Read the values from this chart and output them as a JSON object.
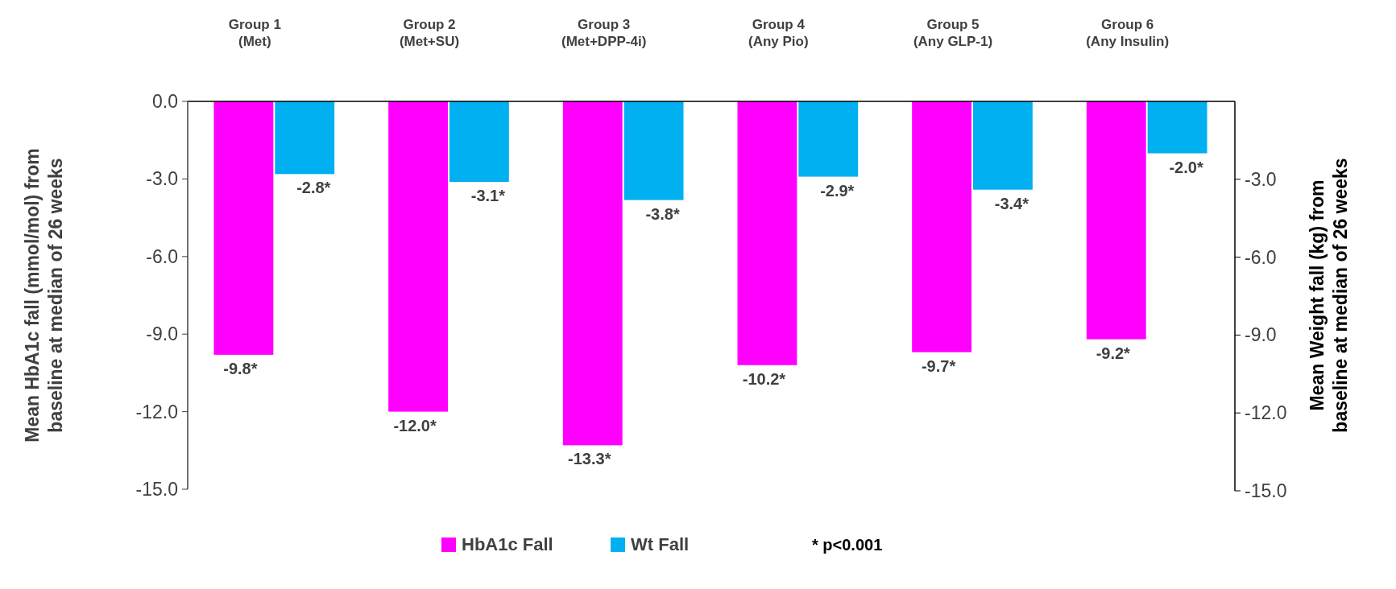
{
  "chart_data": {
    "type": "bar",
    "categories": [
      "Group 1\n(Met)",
      "Group 2\n(Met+SU)",
      "Group 3\n(Met+DPP-4i)",
      "Group 4\n(Any Pio)",
      "Group 5\n(Any GLP-1)",
      "Group 6\n(Any Insulin)"
    ],
    "series": [
      {
        "name": "HbA1c Fall",
        "color": "#ff00ff",
        "values": [
          -9.8,
          -12.0,
          -13.3,
          -10.2,
          -9.7,
          -9.2
        ],
        "value_labels": [
          "-9.8*",
          "-12.0*",
          "-13.3*",
          "-10.2*",
          "-9.7*",
          "-9.2*"
        ]
      },
      {
        "name": "Wt Fall",
        "color": "#00b0f0",
        "axis": "y2",
        "values": [
          -2.8,
          -3.1,
          -3.8,
          -2.9,
          -3.4,
          -2.0
        ],
        "value_labels": [
          "-2.8*",
          "-3.1*",
          "-3.8*",
          "-2.9*",
          "-3.4*",
          "-2.0*"
        ]
      }
    ],
    "ylabel": "Mean HbA1c  fall (mmol/mol) from\nbaseline  at median of 26 weeks",
    "y2label": "Mean Weight fall (kg) from\nbaseline at median of 26 weeks",
    "ylim": [
      -15,
      0
    ],
    "yticks": [
      {
        "value": 0,
        "label": "0.0"
      },
      {
        "value": -3,
        "label": "-3.0"
      },
      {
        "value": -6,
        "label": "-6.0"
      },
      {
        "value": -9,
        "label": "-9.0"
      },
      {
        "value": -12,
        "label": "-12.0"
      },
      {
        "value": -15,
        "label": "-15.0"
      }
    ],
    "y2lim": [
      -15,
      0
    ],
    "y2ticks": [
      {
        "value": -3,
        "label": "-3.0"
      },
      {
        "value": -6,
        "label": "-6.0"
      },
      {
        "value": -9,
        "label": "-9.0"
      },
      {
        "value": -12,
        "label": "-12.0"
      },
      {
        "value": -15,
        "label": "-15.0"
      }
    ],
    "legend": "bottom",
    "grid": false,
    "annotations": [
      "* p<0.001"
    ]
  }
}
